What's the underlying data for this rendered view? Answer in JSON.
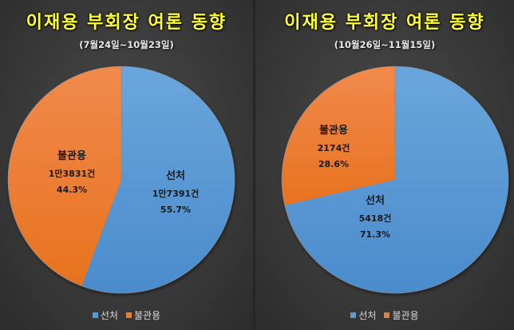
{
  "colors": {
    "blue": "#5b9bd5",
    "orange": "#ed7d31",
    "title": "#ffff33",
    "background": "#3a3a3a"
  },
  "chart_data": [
    {
      "type": "pie",
      "title": "이재용 부회장 여론 동향",
      "subtitle": "(7월24일~10월23일)",
      "slices": [
        {
          "label": "선처",
          "count_text": "1만7391건",
          "count": 17391,
          "percent_text": "55.7%",
          "value": 55.7,
          "color": "#5b9bd5"
        },
        {
          "label": "불관용",
          "count_text": "1만3831건",
          "count": 13831,
          "percent_text": "44.3%",
          "value": 44.3,
          "color": "#ed7d31"
        }
      ],
      "legend": [
        "선처",
        "불관용"
      ],
      "legend_position": "bottom"
    },
    {
      "type": "pie",
      "title": "이재용 부회장 여론 동향",
      "subtitle": "(10월26일~11월15일)",
      "slices": [
        {
          "label": "선처",
          "count_text": "5418건",
          "count": 5418,
          "percent_text": "71.3%",
          "value": 71.3,
          "color": "#5b9bd5"
        },
        {
          "label": "불관용",
          "count_text": "2174건",
          "count": 2174,
          "percent_text": "28.6%",
          "value": 28.6,
          "color": "#ed7d31"
        }
      ],
      "legend": [
        "선처",
        "불관용"
      ],
      "legend_position": "bottom"
    }
  ]
}
